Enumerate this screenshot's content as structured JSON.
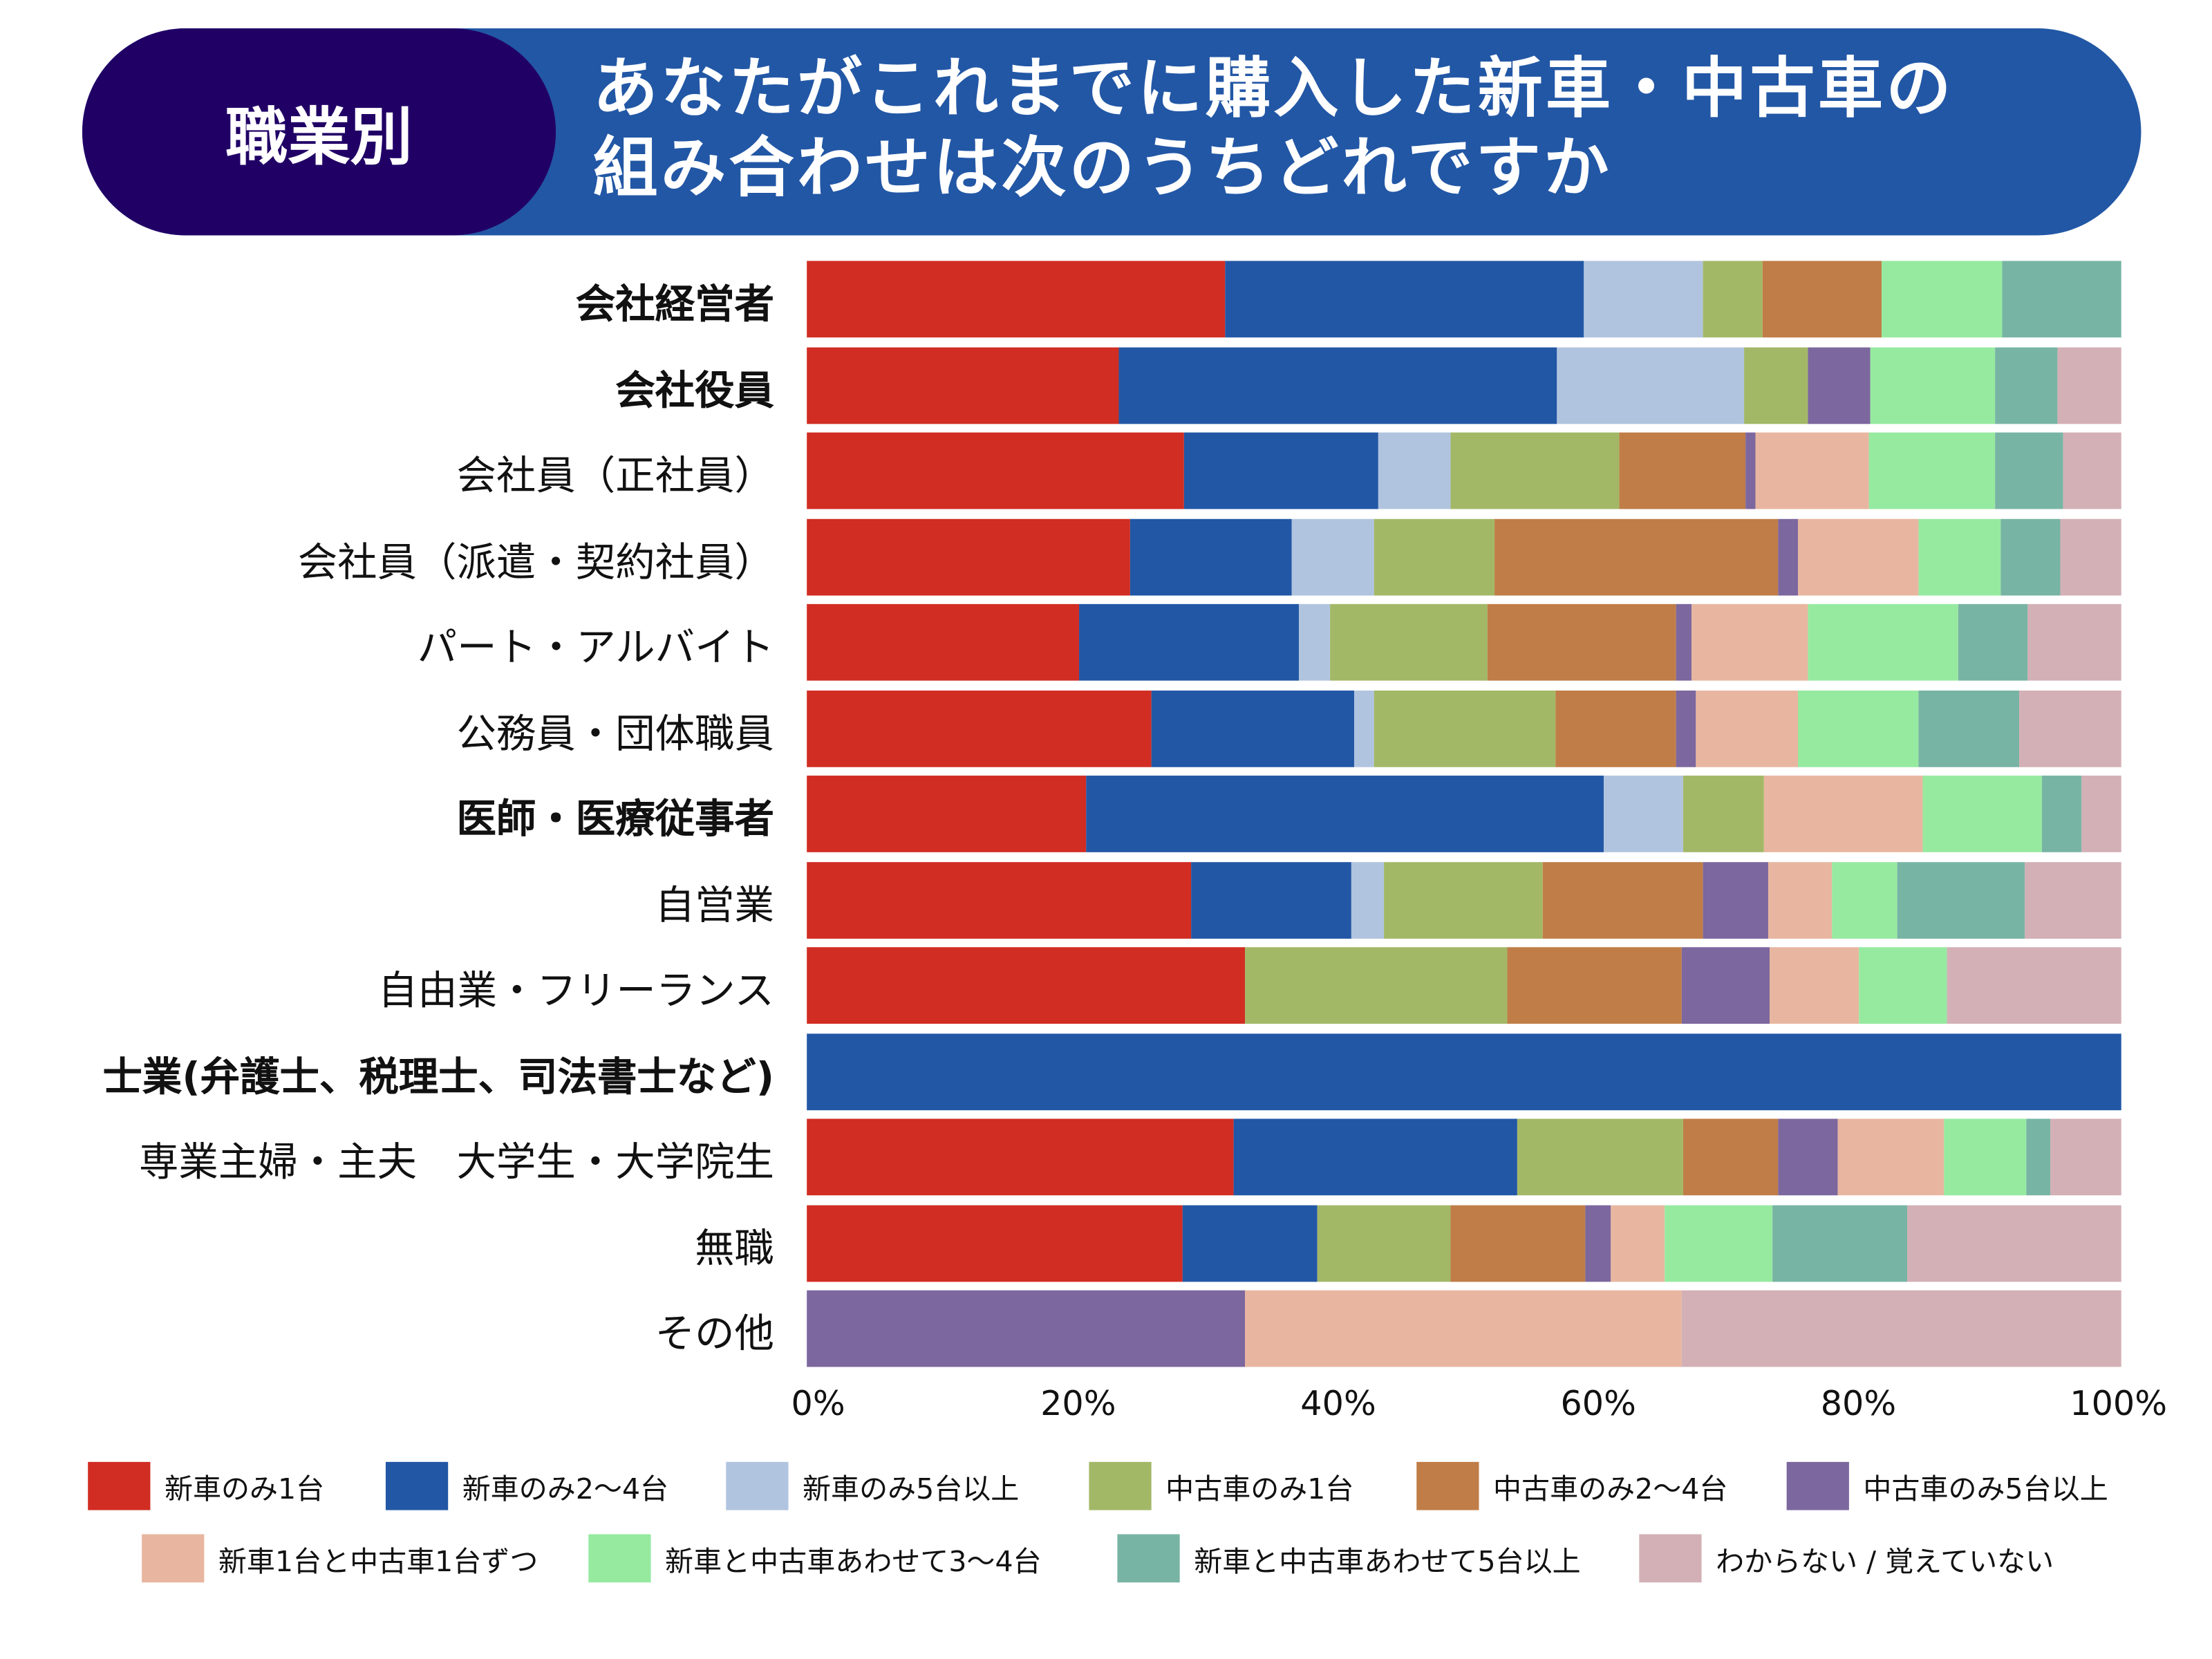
{
  "badge": "職業別",
  "title_line1": "あなたがこれまでに購入した新車・中古車の",
  "title_line2": "組み合わせは次のうちどれですか",
  "chart_data": {
    "type": "bar",
    "orientation": "horizontal",
    "stacked": true,
    "percent": true,
    "xlim": [
      0,
      100
    ],
    "xticks": [
      "0%",
      "20%",
      "40%",
      "60%",
      "80%",
      "100%"
    ],
    "legend_placement": "bottom",
    "grid": false,
    "categories": [
      "会社経営者",
      "会社役員",
      "会社員（正社員）",
      "会社員（派遣・契約社員）",
      "パート・アルバイト",
      "公務員・団体職員",
      "医師・医療従事者",
      "自営業",
      "自由業・フリーランス",
      "士業(弁護士、税理士、司法書士など)",
      "専業主婦・主夫　大学生・大学院生",
      "無職",
      "その他"
    ],
    "bold_categories": [
      "会社経営者",
      "会社役員",
      "医師・医療従事者",
      "士業(弁護士、税理士、司法書士など)"
    ],
    "series": [
      {
        "name": "新車のみ1台",
        "color": "#d12d23",
        "values": [
          31.8,
          23.8,
          28.7,
          24.6,
          20.7,
          26.2,
          21.2,
          29.3,
          33.3,
          0,
          32.4,
          28.6,
          0
        ]
      },
      {
        "name": "新車のみ2〜4台",
        "color": "#2257a5",
        "values": [
          27.3,
          33.3,
          14.8,
          12.3,
          16.7,
          15.4,
          39.4,
          12.2,
          0,
          100,
          21.6,
          10.2,
          0
        ]
      },
      {
        "name": "新車のみ5台以上",
        "color": "#b1c4df",
        "values": [
          9.1,
          14.3,
          5.5,
          6.2,
          2.4,
          1.5,
          6.1,
          2.4,
          0,
          0,
          0,
          0,
          0
        ]
      },
      {
        "name": "中古車のみ1台",
        "color": "#a3b867",
        "values": [
          4.5,
          4.8,
          12.8,
          9.2,
          12.0,
          13.8,
          6.1,
          12.2,
          20.0,
          0,
          12.6,
          10.2,
          0
        ]
      },
      {
        "name": "中古車のみ2〜4台",
        "color": "#c07d47",
        "values": [
          9.1,
          0,
          9.6,
          21.5,
          14.3,
          9.2,
          0,
          12.2,
          13.3,
          0,
          7.2,
          10.2,
          0
        ]
      },
      {
        "name": "中古車のみ5台以上",
        "color": "#7c679e",
        "values": [
          0,
          4.8,
          0.8,
          1.5,
          1.2,
          1.5,
          0,
          4.9,
          6.7,
          0,
          4.5,
          2.0,
          33.3
        ]
      },
      {
        "name": "新車1台と中古車1台ずつ",
        "color": "#e8b6a0",
        "values": [
          0,
          0,
          8.6,
          9.2,
          8.9,
          7.7,
          12.1,
          4.9,
          6.7,
          0,
          8.1,
          4.1,
          33.3
        ]
      },
      {
        "name": "新車と中古車あわせて3〜4台",
        "color": "#96eaa0",
        "values": [
          9.1,
          9.5,
          9.6,
          6.2,
          11.4,
          9.2,
          9.1,
          4.9,
          6.7,
          0,
          6.3,
          8.2,
          0
        ]
      },
      {
        "name": "新車と中古車あわせて5台以上",
        "color": "#78b4a4",
        "values": [
          9.1,
          4.8,
          5.2,
          4.6,
          5.3,
          7.7,
          3.0,
          9.8,
          0,
          0,
          1.8,
          10.2,
          0
        ]
      },
      {
        "name": "わからない / 覚えていない",
        "color": "#d3b0b6",
        "values": [
          0,
          4.8,
          4.4,
          4.6,
          7.1,
          7.7,
          3.0,
          7.3,
          13.3,
          0,
          5.4,
          16.3,
          33.4
        ]
      }
    ]
  }
}
